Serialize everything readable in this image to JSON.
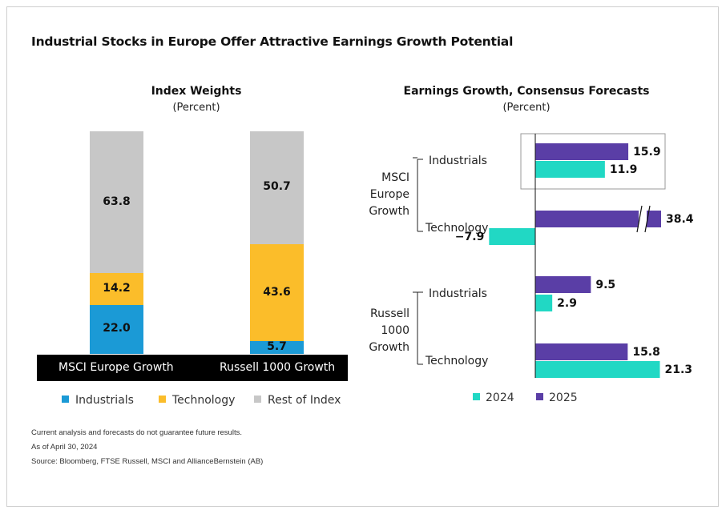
{
  "title": "Industrial Stocks in Europe Offer Attractive Earnings Growth Potential",
  "chart_data": [
    {
      "type": "bar",
      "stacked": true,
      "title": "Index Weights",
      "subtitle": "(Percent)",
      "categories": [
        "MSCI Europe Growth",
        "Russell 1000 Growth"
      ],
      "series": [
        {
          "name": "Industrials",
          "values": [
            22.0,
            5.7
          ],
          "color": "#1b9ad6"
        },
        {
          "name": "Technology",
          "values": [
            14.2,
            43.6
          ],
          "color": "#fbbd2a"
        },
        {
          "name": "Rest of Index",
          "values": [
            63.8,
            50.7
          ],
          "color": "#c7c7c7"
        }
      ],
      "value_labels": [
        [
          "22.0",
          "5.7"
        ],
        [
          "14.2",
          "43.6"
        ],
        [
          "63.8",
          "50.7"
        ]
      ],
      "ylim": [
        0,
        100
      ],
      "legend": "bottom"
    },
    {
      "type": "bar",
      "orientation": "horizontal",
      "title": "Earnings Growth, Consensus Forecasts",
      "subtitle": "(Percent)",
      "groups": [
        {
          "name_lines": [
            "MSCI",
            "Europe",
            "Growth"
          ],
          "categories": [
            "Industrials",
            "Technology"
          ]
        },
        {
          "name_lines": [
            "Russell",
            "1000",
            "Growth"
          ],
          "categories": [
            "Industrials",
            "Technology"
          ]
        }
      ],
      "series": [
        {
          "name": "2025",
          "values": [
            15.9,
            38.4,
            9.5,
            15.8
          ],
          "labels": [
            "15.9",
            "38.4",
            "9.5",
            "15.8"
          ],
          "color": "#5a3ea6"
        },
        {
          "name": "2024",
          "values": [
            11.9,
            -7.9,
            2.9,
            21.3
          ],
          "labels": [
            "11.9",
            "−7.9",
            "2.9",
            "21.3"
          ],
          "color": "#21d8c4"
        }
      ],
      "axis_break": {
        "series": "2025",
        "index": 1
      },
      "highlight": "MSCI Europe Growth Industrials",
      "legend": "bottom",
      "legend_order": [
        "2024",
        "2025"
      ]
    }
  ],
  "notes": [
    "Current analysis and forecasts do not guarantee future results.",
    "As of April 30, 2024",
    "Source: Bloomberg, FTSE Russell, MSCI and AllianceBernstein (AB)"
  ]
}
